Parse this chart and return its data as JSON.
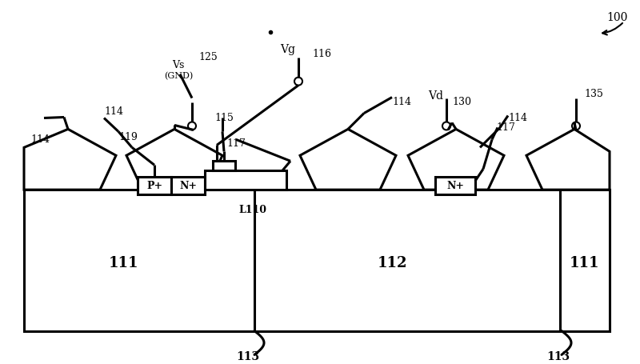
{
  "bg_color": "#ffffff",
  "line_color": "#000000",
  "lw": 2.2,
  "lw_thin": 1.5,
  "fig_label": "100",
  "labels": {
    "111_left": "111",
    "111_right": "111",
    "112": "112",
    "113_left": "113",
    "113_right": "113",
    "114_1": "114",
    "114_2": "114",
    "114_3": "114",
    "114_4": "114",
    "115": "115",
    "116": "116",
    "117_left": "117",
    "117_right": "117",
    "119": "119",
    "125": "125",
    "130": "130",
    "135": "135",
    "Vs": "Vs",
    "GND": "(GND)",
    "Vg": "Vg",
    "Vd": "Vd",
    "L110": "L110",
    "Pplus": "P+",
    "Nplus_left": "N+",
    "Nplus_right": "N+"
  }
}
